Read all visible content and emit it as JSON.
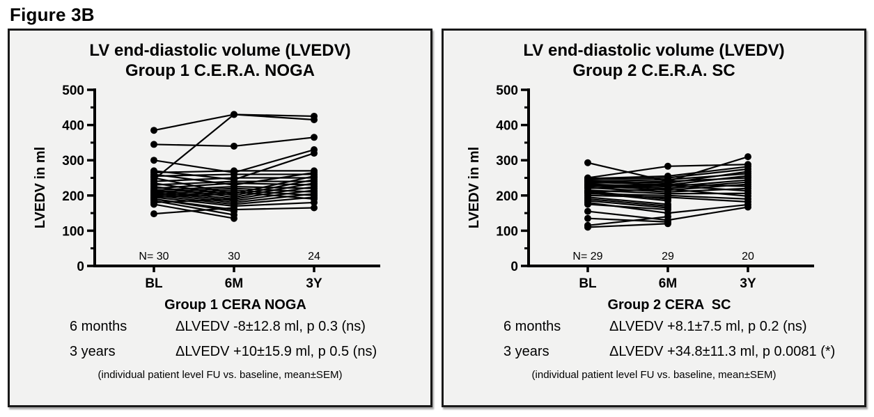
{
  "figure_label": "Figure 3B",
  "panels": [
    {
      "title_line1": "LV end-diastolic volume (LVEDV)",
      "title_line2": "Group 1 C.E.R.A. NOGA",
      "stats": [
        {
          "label": "6 months",
          "value": "ΔLVEDV -8±12.8 ml, p 0.3 (ns)"
        },
        {
          "label": "3 years",
          "value": "ΔLVEDV +10±15.9 ml, p 0.5 (ns)"
        }
      ],
      "footnote": "(individual patient level FU vs. baseline, mean±SEM)"
    },
    {
      "title_line1": "LV end-diastolic volume (LVEDV)",
      "title_line2": "Group 2 C.E.R.A. SC",
      "stats": [
        {
          "label": "6 months",
          "value": "ΔLVEDV +8.1±7.5 ml, p 0.2 (ns)"
        },
        {
          "label": "3 years",
          "value": "ΔLVEDV +34.8±11.3 ml, p 0.0081 (*)"
        }
      ],
      "footnote": "(individual patient level FU vs. baseline, mean±SEM)"
    }
  ],
  "chart_data": [
    {
      "type": "line",
      "title": "LV end-diastolic volume (LVEDV) Group 1 C.E.R.A. NOGA",
      "xlabel": "Group 1 CERA NOGA",
      "ylabel": "LVEDV in ml",
      "x_ticks": [
        "BL",
        "6M",
        "3Y"
      ],
      "y_ticks": [
        0,
        100,
        200,
        300,
        400,
        500
      ],
      "ylim": [
        0,
        500
      ],
      "grid": false,
      "legend": "none",
      "n_labels": [
        "N= 30",
        "30",
        "24"
      ],
      "series": [
        {
          "name": "patient-1",
          "values": [
            385,
            430,
            425
          ]
        },
        {
          "name": "patient-2",
          "values": [
            245,
            430,
            415
          ]
        },
        {
          "name": "patient-3",
          "values": [
            345,
            340,
            365
          ]
        },
        {
          "name": "patient-4",
          "values": [
            300,
            265,
            330
          ]
        },
        {
          "name": "patient-5",
          "values": [
            270,
            245,
            320
          ]
        },
        {
          "name": "patient-6",
          "values": [
            265,
            270,
            270
          ]
        },
        {
          "name": "patient-7",
          "values": [
            260,
            230,
            265
          ]
        },
        {
          "name": "patient-8",
          "values": [
            255,
            260,
            260
          ]
        },
        {
          "name": "patient-9",
          "values": [
            250,
            205,
            255
          ]
        },
        {
          "name": "patient-10",
          "values": [
            240,
            250,
            250
          ]
        },
        {
          "name": "patient-11",
          "values": [
            235,
            200,
            245
          ]
        },
        {
          "name": "patient-12",
          "values": [
            230,
            240,
            240
          ]
        },
        {
          "name": "patient-13",
          "values": [
            225,
            195,
            235
          ]
        },
        {
          "name": "patient-14",
          "values": [
            220,
            235,
            230
          ]
        },
        {
          "name": "patient-15",
          "values": [
            215,
            190,
            225
          ]
        },
        {
          "name": "patient-16",
          "values": [
            215,
            225,
            220
          ]
        },
        {
          "name": "patient-17",
          "values": [
            210,
            185,
            215
          ]
        },
        {
          "name": "patient-18",
          "values": [
            210,
            220,
            210
          ]
        },
        {
          "name": "patient-19",
          "values": [
            205,
            180,
            205
          ]
        },
        {
          "name": "patient-20",
          "values": [
            205,
            215,
            200
          ]
        },
        {
          "name": "patient-21",
          "values": [
            200,
            175,
            195
          ]
        },
        {
          "name": "patient-22",
          "values": [
            200,
            210,
            190
          ]
        },
        {
          "name": "patient-23",
          "values": [
            195,
            170,
            180
          ]
        },
        {
          "name": "patient-24",
          "values": [
            190,
            160,
            165
          ]
        },
        {
          "name": "patient-25",
          "values": [
            195,
            205,
            null
          ]
        },
        {
          "name": "patient-26",
          "values": [
            190,
            155,
            null
          ]
        },
        {
          "name": "patient-27",
          "values": [
            185,
            145,
            null
          ]
        },
        {
          "name": "patient-28",
          "values": [
            180,
            190,
            null
          ]
        },
        {
          "name": "patient-29",
          "values": [
            175,
            135,
            null
          ]
        },
        {
          "name": "patient-30",
          "values": [
            148,
            165,
            null
          ]
        }
      ]
    },
    {
      "type": "line",
      "title": "LV end-diastolic volume (LVEDV) Group 2 C.E.R.A. SC",
      "xlabel": "Group 2 CERA  SC",
      "ylabel": "LVEDV in ml",
      "x_ticks": [
        "BL",
        "6M",
        "3Y"
      ],
      "y_ticks": [
        0,
        100,
        200,
        300,
        400,
        500
      ],
      "ylim": [
        0,
        500
      ],
      "grid": false,
      "legend": "none",
      "n_labels": [
        "N= 29",
        "29",
        "20"
      ],
      "series": [
        {
          "name": "patient-1",
          "values": [
            293,
            240,
            310
          ]
        },
        {
          "name": "patient-2",
          "values": [
            250,
            283,
            288
          ]
        },
        {
          "name": "patient-3",
          "values": [
            248,
            255,
            282
          ]
        },
        {
          "name": "patient-4",
          "values": [
            245,
            250,
            275
          ]
        },
        {
          "name": "patient-5",
          "values": [
            242,
            235,
            268
          ]
        },
        {
          "name": "patient-6",
          "values": [
            240,
            245,
            262
          ]
        },
        {
          "name": "patient-7",
          "values": [
            238,
            230,
            256
          ]
        },
        {
          "name": "patient-8",
          "values": [
            235,
            240,
            250
          ]
        },
        {
          "name": "patient-9",
          "values": [
            232,
            225,
            244
          ]
        },
        {
          "name": "patient-10",
          "values": [
            230,
            220,
            238
          ]
        },
        {
          "name": "patient-11",
          "values": [
            228,
            215,
            232
          ]
        },
        {
          "name": "patient-12",
          "values": [
            225,
            232,
            226
          ]
        },
        {
          "name": "patient-13",
          "values": [
            222,
            210,
            220
          ]
        },
        {
          "name": "patient-14",
          "values": [
            220,
            228,
            213
          ]
        },
        {
          "name": "patient-15",
          "values": [
            215,
            205,
            206
          ]
        },
        {
          "name": "patient-16",
          "values": [
            210,
            218,
            198
          ]
        },
        {
          "name": "patient-17",
          "values": [
            205,
            200,
            190
          ]
        },
        {
          "name": "patient-18",
          "values": [
            200,
            195,
            182
          ]
        },
        {
          "name": "patient-19",
          "values": [
            180,
            150,
            174
          ]
        },
        {
          "name": "patient-20",
          "values": [
            155,
            130,
            167
          ]
        },
        {
          "name": "patient-21",
          "values": [
            212,
            190,
            null
          ]
        },
        {
          "name": "patient-22",
          "values": [
            208,
            185,
            null
          ]
        },
        {
          "name": "patient-23",
          "values": [
            195,
            175,
            null
          ]
        },
        {
          "name": "patient-24",
          "values": [
            190,
            170,
            null
          ]
        },
        {
          "name": "patient-25",
          "values": [
            185,
            165,
            null
          ]
        },
        {
          "name": "patient-26",
          "values": [
            175,
            160,
            null
          ]
        },
        {
          "name": "patient-27",
          "values": [
            135,
            125,
            null
          ]
        },
        {
          "name": "patient-28",
          "values": [
            115,
            140,
            null
          ]
        },
        {
          "name": "patient-29",
          "values": [
            110,
            120,
            null
          ]
        }
      ]
    }
  ]
}
